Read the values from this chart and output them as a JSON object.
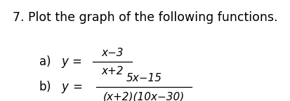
{
  "title": "7. Plot the graph of the following functions.",
  "title_fontsize": 12.5,
  "background_color": "#ffffff",
  "text_color": "#000000",
  "fontsize_label": 12,
  "fontsize_eq": 11,
  "eq_a_numerator": "x−3",
  "eq_a_denominator": "x+2",
  "eq_b_numerator": "5x−15",
  "eq_b_denominator": "(x+2)(10x−30)"
}
